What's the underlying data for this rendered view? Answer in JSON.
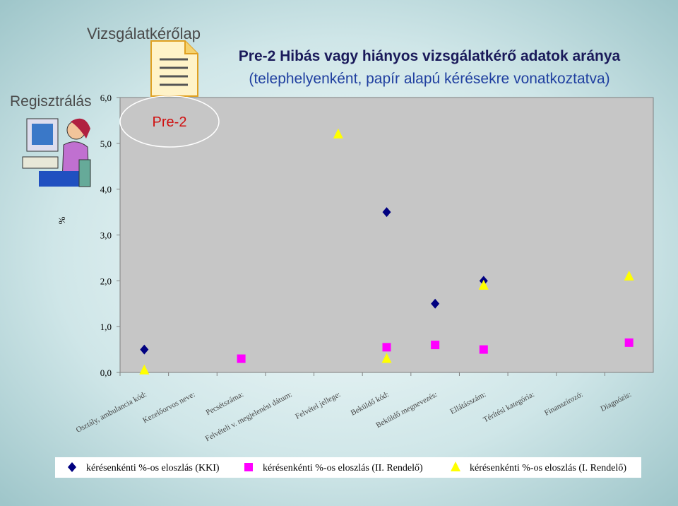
{
  "slide": {
    "section": "Vizsgálatkérőlap",
    "step": "Regisztrálás",
    "badge": "Pre-2"
  },
  "chart_data": {
    "type": "scatter",
    "title": "Pre-2 Hibás vagy hiányos vizsgálatkérő adatok aránya",
    "subtitle": "(telephelyenként, papír alapú kérésekre vonatkoztatva)",
    "y_label": "%",
    "categories": [
      "Osztály, ambulancia kód:",
      "Kezelőorvos neve:",
      "Pecsétszáma:",
      "Felvételi v. megjelenési dátum:",
      "Felvétel jellege:",
      "Beküldő kód:",
      "Beküldő megnevezés:",
      "Ellátásszám:",
      "Térítési kategória:",
      "Finanszírozó:",
      "Diagnózis:"
    ],
    "series": [
      {
        "name": "kérésenkénti %-os eloszlás (KKI)",
        "color": "#000080",
        "marker": "diamond",
        "values": [
          0.5,
          null,
          null,
          null,
          null,
          3.5,
          1.5,
          2.0,
          null,
          null,
          null
        ]
      },
      {
        "name": "kérésenkénti %-os eloszlás (II. Rendelő)",
        "color": "#ff00ff",
        "marker": "square",
        "values": [
          null,
          null,
          0.3,
          null,
          null,
          0.55,
          0.6,
          0.5,
          null,
          null,
          0.65
        ]
      },
      {
        "name": "kérésenkénti %-os eloszlás (I. Rendelő)",
        "color": "#ffff00",
        "marker": "triangle",
        "values": [
          0.05,
          null,
          null,
          null,
          5.2,
          0.3,
          null,
          1.9,
          null,
          null,
          2.1
        ]
      }
    ],
    "ylim": [
      0,
      6
    ],
    "yticks": [
      {
        "value": 0,
        "label": "0,0"
      },
      {
        "value": 1,
        "label": "1,0"
      },
      {
        "value": 2,
        "label": "2,0"
      },
      {
        "value": 3,
        "label": "3,0"
      },
      {
        "value": 4,
        "label": "4,0"
      },
      {
        "value": 5,
        "label": "5,0"
      },
      {
        "value": 6,
        "label": "6,0"
      }
    ]
  }
}
